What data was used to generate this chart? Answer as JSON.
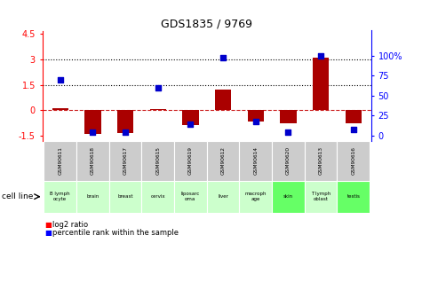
{
  "title": "GDS1835 / 9769",
  "samples": [
    "GSM90611",
    "GSM90618",
    "GSM90617",
    "GSM90615",
    "GSM90619",
    "GSM90612",
    "GSM90614",
    "GSM90620",
    "GSM90613",
    "GSM90616"
  ],
  "cell_lines": [
    "B lymph\nocyte",
    "brain",
    "breast",
    "cervix",
    "liposarc\noma",
    "liver",
    "macroph\nage",
    "skin",
    "T lymph\noblast",
    "testis"
  ],
  "cell_line_colors": [
    "#ccffcc",
    "#ccffcc",
    "#ccffcc",
    "#ccffcc",
    "#ccffcc",
    "#ccffcc",
    "#ccffcc",
    "#66ff66",
    "#ccffcc",
    "#66ff66"
  ],
  "log2_ratio": [
    0.1,
    -1.4,
    -1.35,
    0.07,
    -0.85,
    1.2,
    -0.65,
    -0.75,
    3.1,
    -0.75
  ],
  "percentile_rank": [
    70,
    5,
    5,
    60,
    15,
    97,
    18,
    5,
    100,
    8
  ],
  "ylim_left": [
    -1.8,
    4.7
  ],
  "ylim_right": [
    -6.25,
    131.25
  ],
  "yticks_left": [
    -1.5,
    0,
    1.5,
    3,
    4.5
  ],
  "yticks_right": [
    0,
    25,
    50,
    75,
    100
  ],
  "ytick_labels_left": [
    "-1.5",
    "0",
    "1.5",
    "3",
    "4.5"
  ],
  "ytick_labels_right": [
    "0",
    "25",
    "50",
    "75",
    "100%"
  ],
  "hlines": [
    1.5,
    3.0
  ],
  "bar_color": "#aa0000",
  "dot_color": "#0000cc",
  "zero_line_color": "#cc2222",
  "bg_color": "#ffffff",
  "bar_width": 0.5,
  "dot_size": 25,
  "gsm_bg": "#cccccc",
  "legend_red": "log2 ratio",
  "legend_blue": "percentile rank within the sample"
}
